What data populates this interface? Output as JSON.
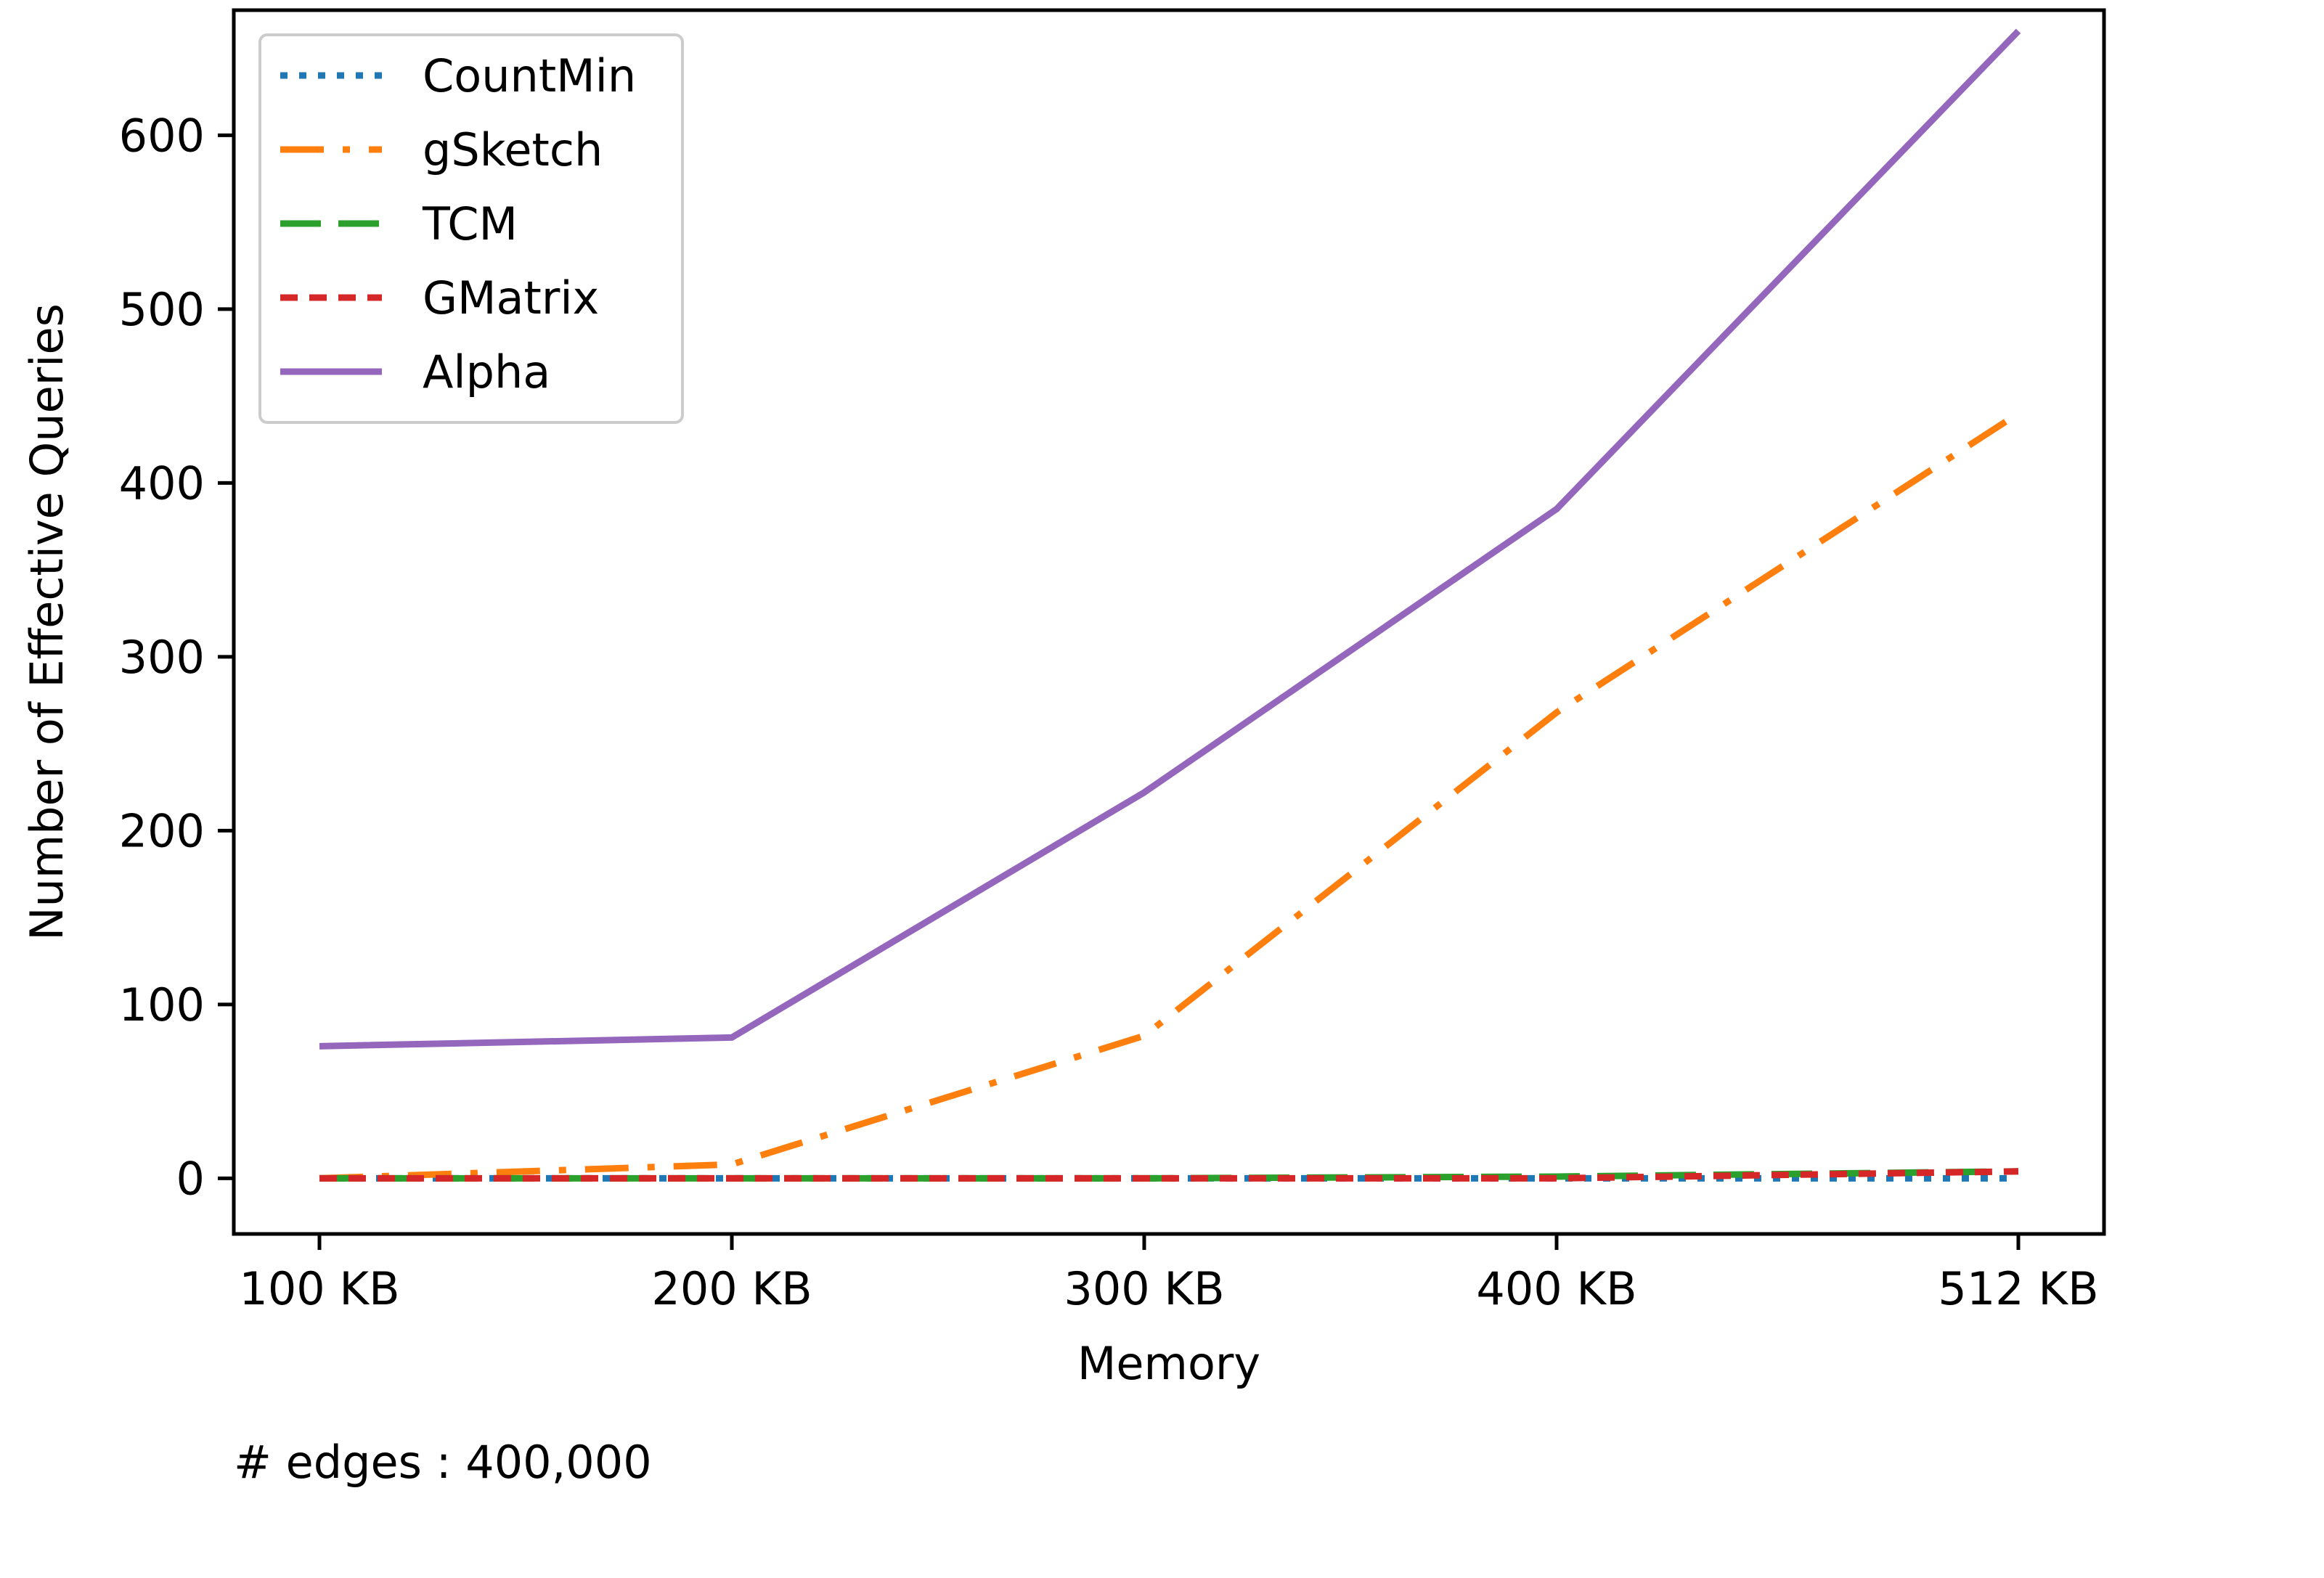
{
  "chart_data": {
    "type": "line",
    "title": "",
    "xlabel": "Memory",
    "ylabel": "Number of Effective Queries",
    "categories": [
      "100 KB",
      "200 KB",
      "300 KB",
      "400 KB",
      "512 KB"
    ],
    "x": [
      100,
      200,
      300,
      400,
      512
    ],
    "ylim": [
      -32,
      672
    ],
    "yticks": [
      0,
      100,
      200,
      300,
      400,
      500,
      600
    ],
    "grid": false,
    "legend_position": "top-left",
    "series": [
      {
        "name": "CountMin",
        "color": "#1f77b4",
        "style": "dotted",
        "values": [
          0,
          0,
          0,
          0,
          0
        ]
      },
      {
        "name": "gSketch",
        "color": "#ff7f0e",
        "style": "dashdot",
        "values": [
          0,
          8,
          82,
          268,
          440
        ]
      },
      {
        "name": "TCM",
        "color": "#2ca02c",
        "style": "dashed",
        "values": [
          0,
          0,
          0,
          1,
          4
        ]
      },
      {
        "name": "GMatrix",
        "color": "#d62728",
        "style": "densedash",
        "values": [
          0,
          0,
          0,
          0,
          4
        ]
      },
      {
        "name": "Alpha",
        "color": "#9467bd",
        "style": "solid",
        "values": [
          76,
          81,
          222,
          385,
          660
        ]
      }
    ],
    "annotation": "# edges : 400,000"
  }
}
